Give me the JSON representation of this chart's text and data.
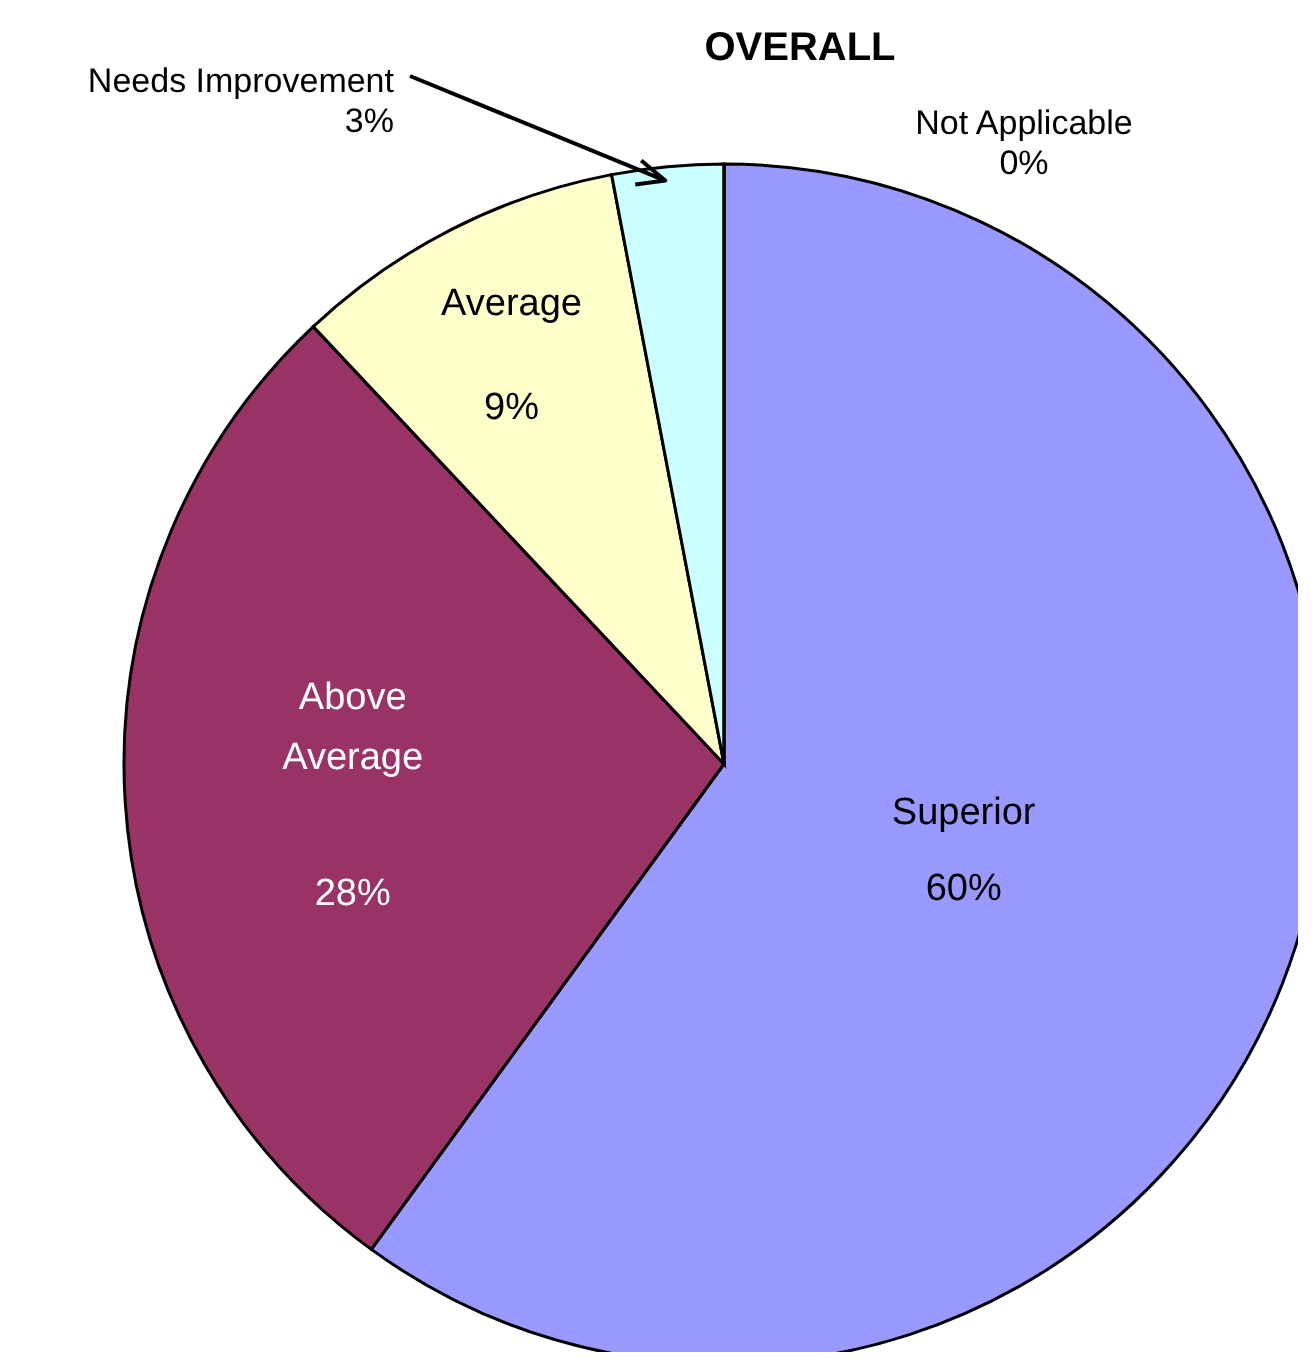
{
  "chart_data": {
    "type": "pie",
    "title": "OVERALL",
    "categories": [
      "Superior",
      "Above Average",
      "Average",
      "Needs Improvement",
      "Not Applicable"
    ],
    "values": [
      60,
      28,
      9,
      3,
      0
    ],
    "value_labels": [
      "60%",
      "28%",
      "9%",
      "3%",
      "0%"
    ],
    "colors": [
      "#9999ff",
      "#993366",
      "#ffffcc",
      "#ccffff",
      "#660066"
    ],
    "legend": false
  }
}
